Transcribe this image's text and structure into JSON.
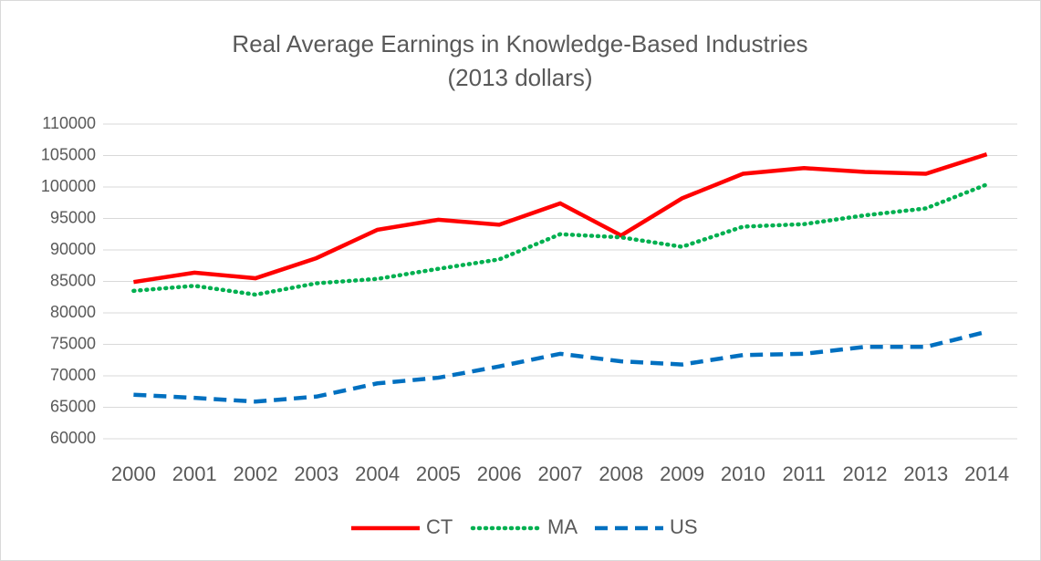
{
  "chart_data": {
    "type": "line",
    "title": "Real Average Earnings in Knowledge-Based Industries",
    "subtitle": "(2013 dollars)",
    "categories": [
      "2000",
      "2001",
      "2002",
      "2003",
      "2004",
      "2005",
      "2006",
      "2007",
      "2008",
      "2009",
      "2010",
      "2011",
      "2012",
      "2013",
      "2014"
    ],
    "series": [
      {
        "name": "CT",
        "color": "#ff0000",
        "line_style": "solid",
        "values": [
          84900,
          86400,
          85500,
          88700,
          93200,
          94800,
          94000,
          97400,
          92300,
          98200,
          102100,
          103000,
          102400,
          102100,
          105200
        ]
      },
      {
        "name": "MA",
        "color": "#00b050",
        "line_style": "dotted",
        "values": [
          83500,
          84300,
          82900,
          84700,
          85400,
          87000,
          88500,
          92500,
          92000,
          90500,
          93700,
          94100,
          95500,
          96600,
          100400
        ]
      },
      {
        "name": "US",
        "color": "#0070c0",
        "line_style": "dashed",
        "values": [
          67000,
          66500,
          65900,
          66700,
          68800,
          69700,
          71500,
          73500,
          72300,
          71800,
          73300,
          73500,
          74600,
          74600,
          77000
        ]
      }
    ],
    "ylim": [
      60000,
      110000
    ],
    "yticks": [
      60000,
      65000,
      70000,
      75000,
      80000,
      85000,
      90000,
      95000,
      100000,
      105000,
      110000
    ],
    "grid": true,
    "legend": "bottom"
  }
}
